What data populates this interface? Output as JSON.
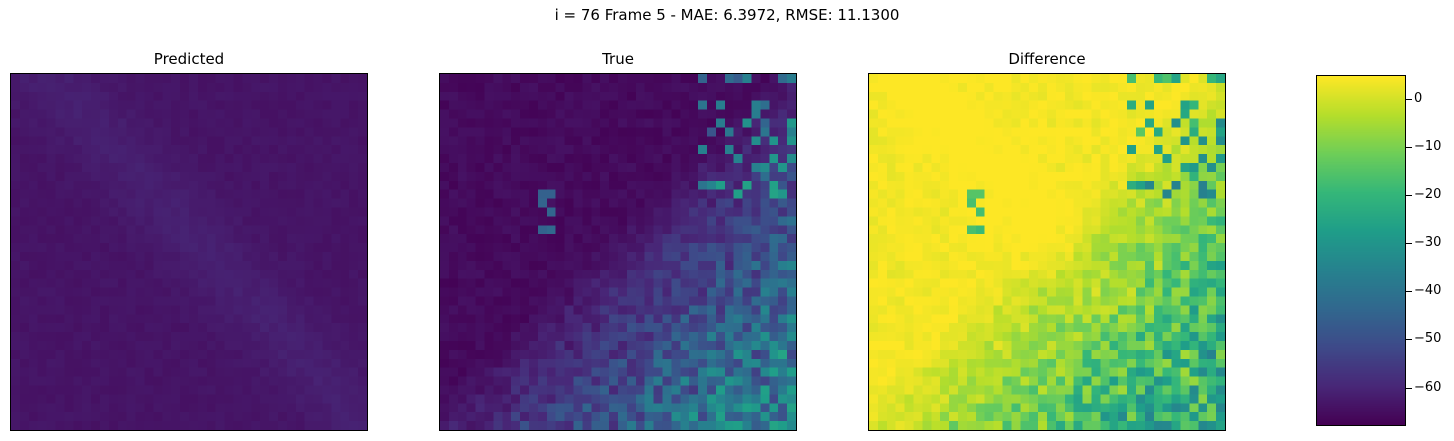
{
  "figure": {
    "suptitle": "i = 76 Frame 5 - MAE: 6.3972, RMSE: 11.1300"
  },
  "colors": {
    "colormap": "viridis",
    "viridis_stops": [
      "#440154",
      "#482878",
      "#3e4a89",
      "#31688e",
      "#26828e",
      "#1f9e89",
      "#35b779",
      "#6ece58",
      "#b5de2b",
      "#fde725"
    ]
  },
  "chart_data": [
    {
      "type": "heatmap",
      "title": "Predicted",
      "grid_size": [
        40,
        40
      ],
      "value_range": [
        -68,
        5
      ],
      "description_of_field": "near-uniform dark purple field, slightly lighter diagonal band upper-left"
    },
    {
      "type": "heatmap",
      "title": "True",
      "grid_size": [
        40,
        40
      ],
      "value_range": [
        -68,
        5
      ],
      "description_of_field": "dark background with brighter blue/teal pixels concentrated lower-right"
    },
    {
      "type": "heatmap",
      "title": "Difference",
      "grid_size": [
        40,
        40
      ],
      "value_range": [
        -68,
        5
      ],
      "description_of_field": "mostly yellow/green, teal/blue patches lower-right"
    },
    {
      "type": "colorbar",
      "colormap": "viridis",
      "vmin": -68,
      "vmax": 5,
      "ticks": [
        0,
        -10,
        -20,
        -30,
        -40,
        -50,
        -60
      ],
      "tick_labels": [
        "0",
        "−10",
        "−20",
        "−30",
        "−40",
        "−50",
        "−60"
      ]
    }
  ]
}
